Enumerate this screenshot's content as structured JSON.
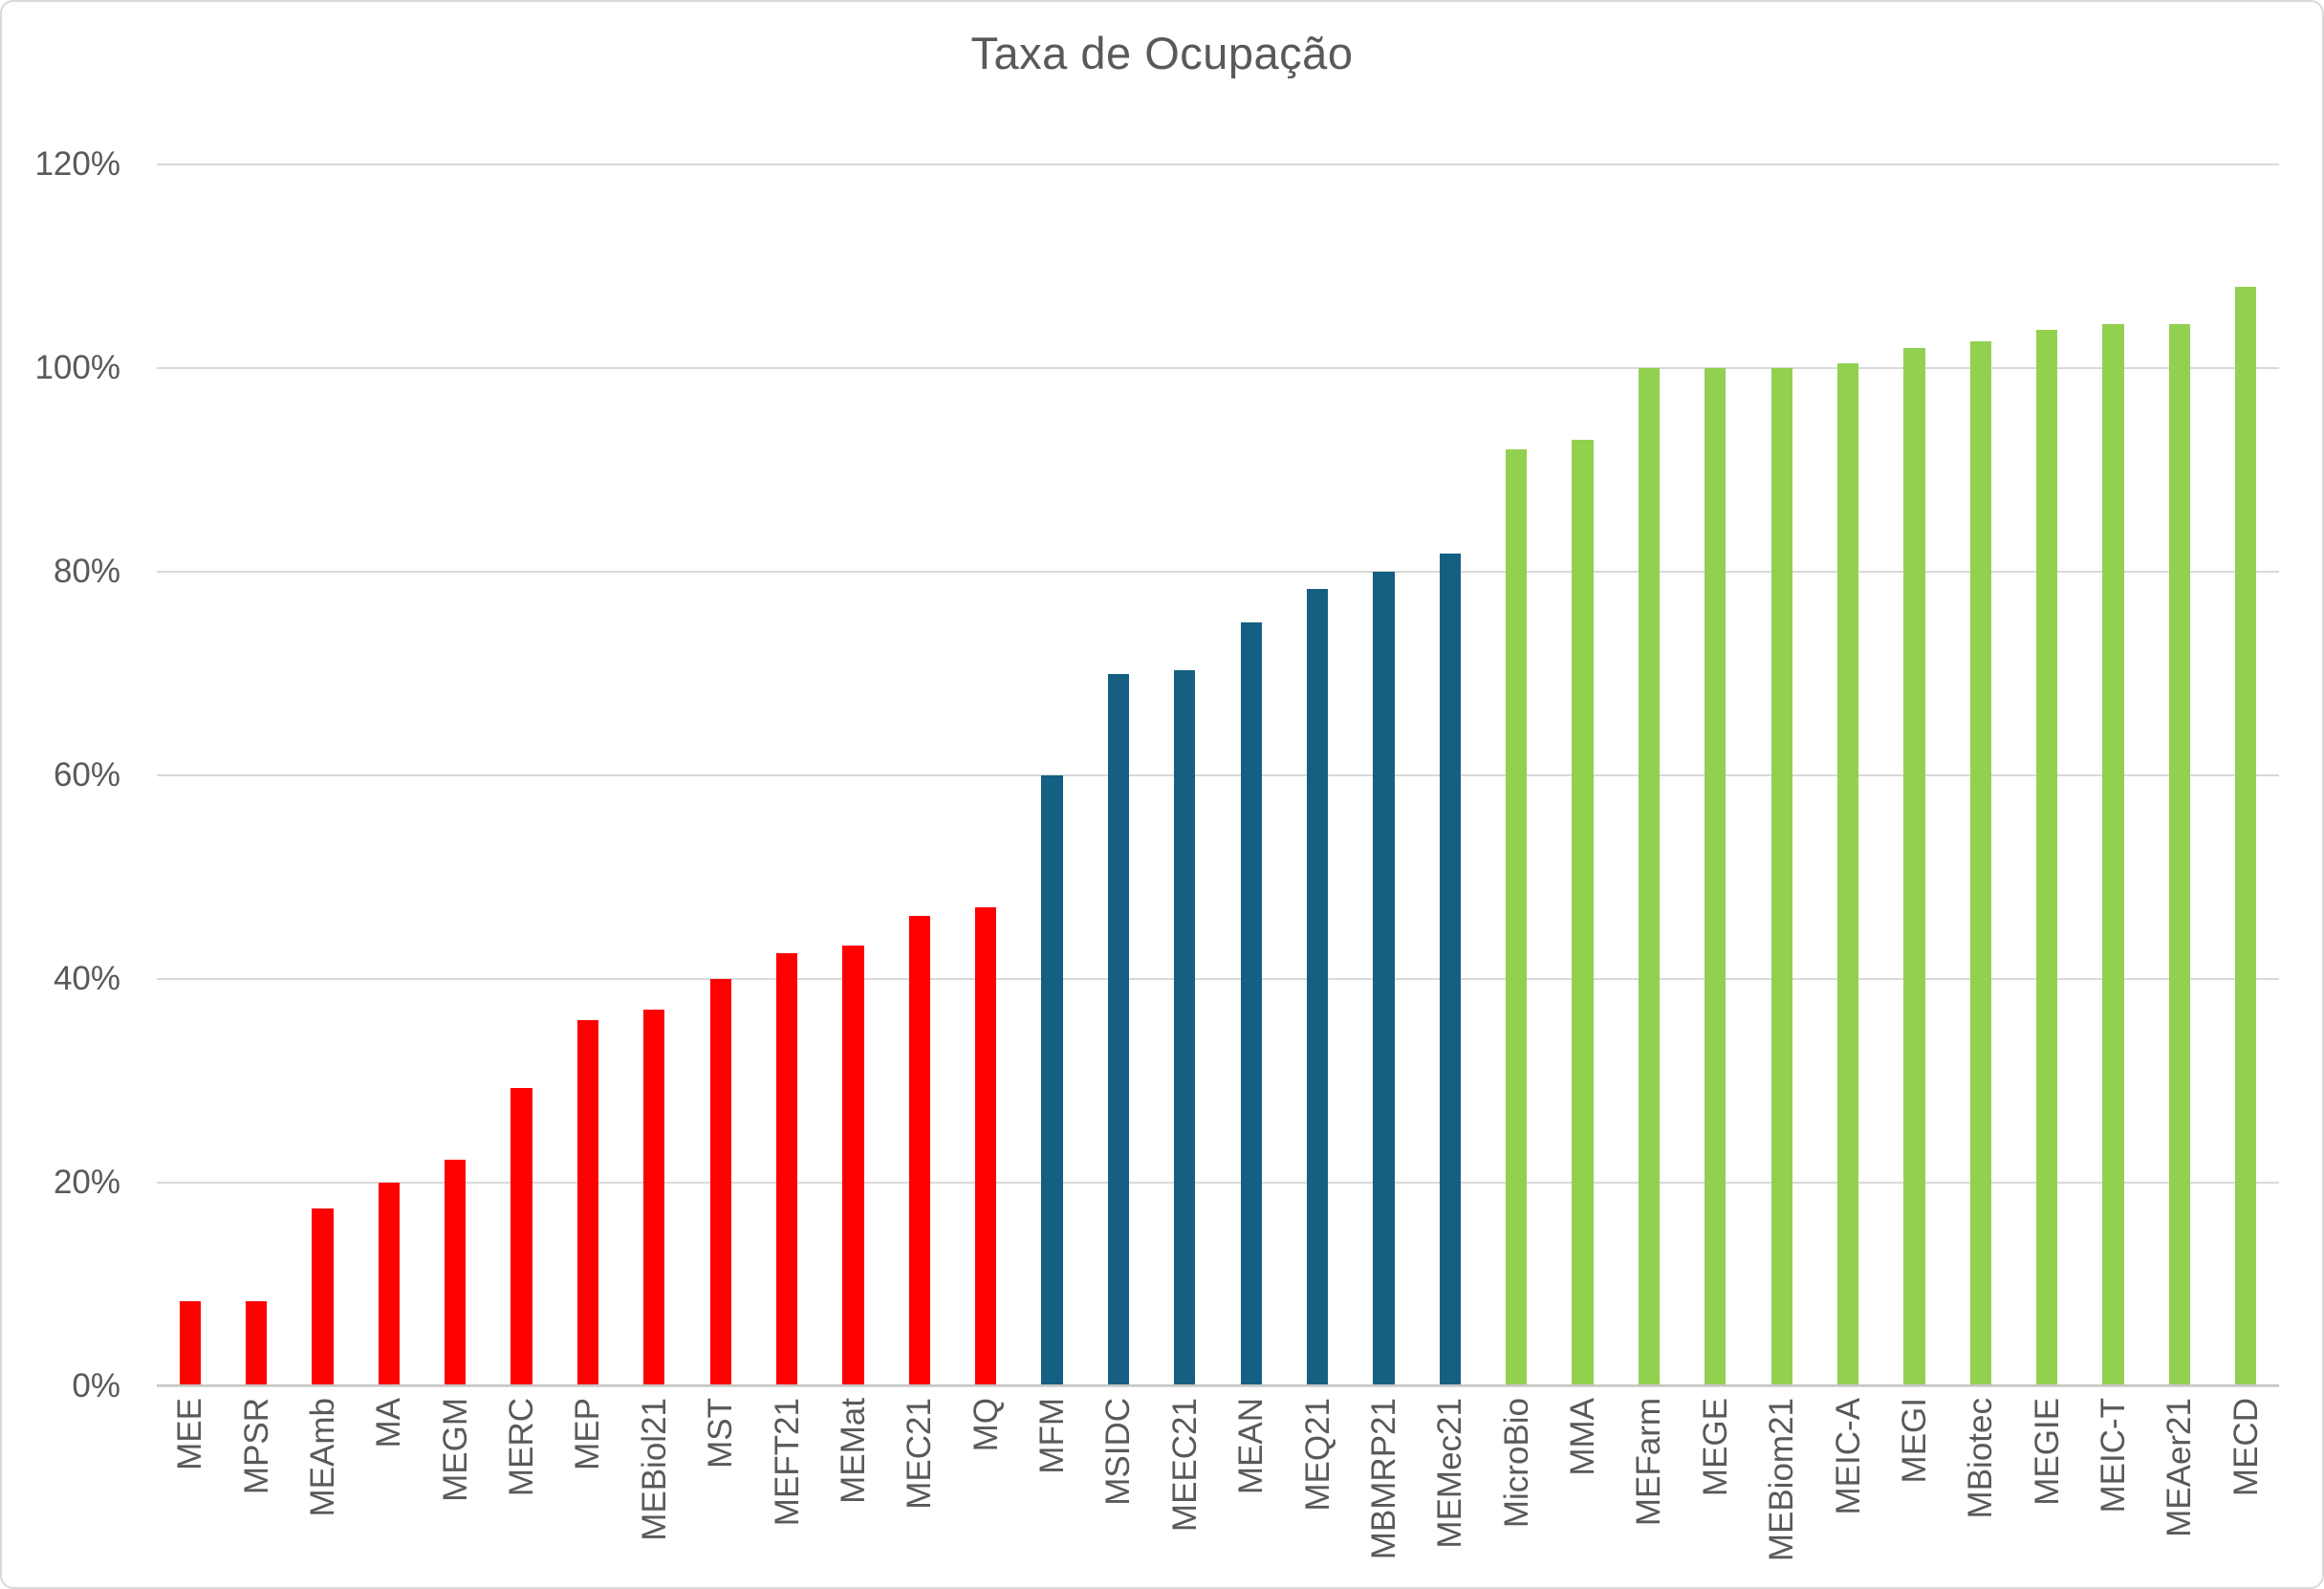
{
  "chart_data": {
    "type": "bar",
    "title": "Taxa de Ocupação",
    "categories": [
      "MEE",
      "MPSR",
      "MEAmb",
      "MA",
      "MEGM",
      "MERC",
      "MEP",
      "MEBiol21",
      "MST",
      "MEFT21",
      "MEMat",
      "MEC21",
      "MQ",
      "MFM",
      "MSIDC",
      "MEEC21",
      "MEAN",
      "MEQ21",
      "MBMRP21",
      "MEMec21",
      "MicroBio",
      "MMA",
      "MEFarm",
      "MEGE",
      "MEBiom21",
      "MEIC-A",
      "MEGI",
      "MBiotec",
      "MEGIE",
      "MEIC-T",
      "MEAer21",
      "MECD"
    ],
    "values": [
      8.4,
      8.4,
      17.5,
      20,
      22.3,
      29.3,
      36,
      37,
      40,
      42.5,
      43.3,
      46.2,
      47,
      60,
      70,
      70.3,
      75,
      78.3,
      80,
      81.8,
      92,
      93,
      100,
      100,
      100,
      100.5,
      102,
      102.6,
      103.8,
      104.3,
      104.3,
      108
    ],
    "groups": [
      "red",
      "red",
      "red",
      "red",
      "red",
      "red",
      "red",
      "red",
      "red",
      "red",
      "red",
      "red",
      "red",
      "blue",
      "blue",
      "blue",
      "blue",
      "blue",
      "blue",
      "blue",
      "green",
      "green",
      "green",
      "green",
      "green",
      "green",
      "green",
      "green",
      "green",
      "green",
      "green",
      "green"
    ],
    "group_colors": {
      "red": "#FF0000",
      "blue": "#156082",
      "green": "#92D050"
    },
    "ylim": [
      0,
      120
    ],
    "ytick_values": [
      0,
      20,
      40,
      60,
      80,
      100,
      120
    ],
    "ytick_labels": [
      "0%",
      "20%",
      "40%",
      "60%",
      "80%",
      "100%",
      "120%"
    ],
    "grid": true,
    "legend_position": "none",
    "x_label_rotation_deg": 90
  }
}
